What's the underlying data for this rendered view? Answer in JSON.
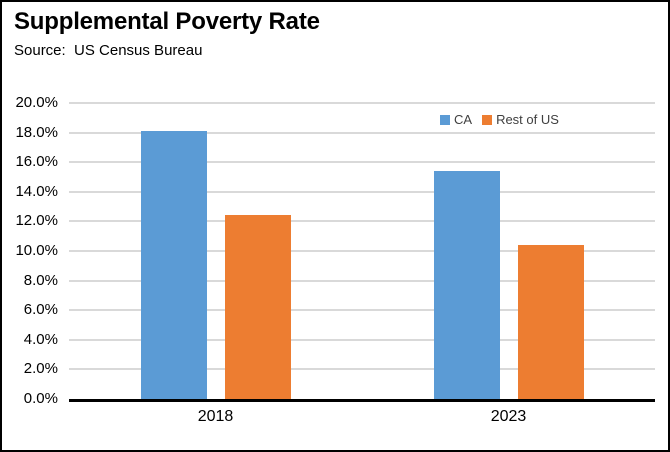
{
  "header": {
    "title": "Supplemental Poverty Rate",
    "source": "Source:  US Census Bureau"
  },
  "chart_data": {
    "type": "bar",
    "title": "Supplemental Poverty Rate",
    "subtitle": "Source:  US Census Bureau",
    "categories": [
      "2018",
      "2023"
    ],
    "series": [
      {
        "name": "CA",
        "color": "#5B9BD5",
        "values": [
          18.1,
          15.4
        ]
      },
      {
        "name": "Rest of US",
        "color": "#ED7D31",
        "values": [
          12.4,
          10.4
        ]
      }
    ],
    "xlabel": "",
    "ylabel": "",
    "ylim": [
      0,
      20
    ],
    "ytick_step": 2,
    "ytick_labels": [
      "0.0%",
      "2.0%",
      "4.0%",
      "6.0%",
      "8.0%",
      "10.0%",
      "12.0%",
      "14.0%",
      "16.0%",
      "18.0%",
      "20.0%"
    ],
    "grid": true,
    "gridline_color": "#D9D9D9",
    "axis_line_color": "#000000",
    "legend_position": "inside-top-right"
  }
}
